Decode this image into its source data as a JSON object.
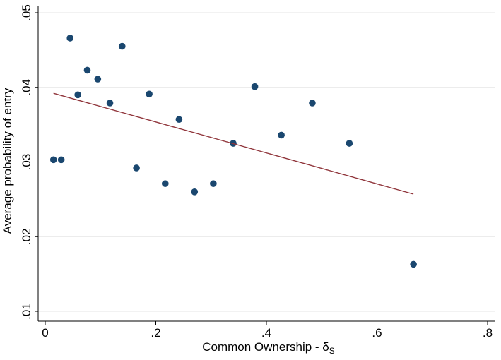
{
  "chart_data": {
    "type": "scatter",
    "title": "",
    "xlabel": "Common Ownership - δ",
    "xlabel_subscript": "S",
    "ylabel": "Average probability of entry",
    "xlim": [
      0,
      0.8
    ],
    "ylim": [
      0.01,
      0.05
    ],
    "x_ticks": [
      0,
      0.2,
      0.4,
      0.6,
      0.8
    ],
    "x_tick_labels": [
      "0",
      ".2",
      ".4",
      ".6",
      ".8"
    ],
    "y_ticks": [
      0.01,
      0.02,
      0.03,
      0.04,
      0.05
    ],
    "y_tick_labels": [
      ".01",
      ".02",
      ".03",
      ".04",
      ".05"
    ],
    "grid": "horizontal",
    "legend": "none",
    "series": [
      {
        "type": "scatter",
        "color": "#1a476f",
        "points": [
          [
            0.015,
            0.0303
          ],
          [
            0.029,
            0.0303
          ],
          [
            0.045,
            0.0466
          ],
          [
            0.059,
            0.039
          ],
          [
            0.076,
            0.0423
          ],
          [
            0.095,
            0.0411
          ],
          [
            0.117,
            0.0379
          ],
          [
            0.139,
            0.0455
          ],
          [
            0.165,
            0.0292
          ],
          [
            0.188,
            0.0391
          ],
          [
            0.217,
            0.0271
          ],
          [
            0.242,
            0.0357
          ],
          [
            0.27,
            0.026
          ],
          [
            0.304,
            0.0271
          ],
          [
            0.34,
            0.0325
          ],
          [
            0.379,
            0.0401
          ],
          [
            0.427,
            0.0336
          ],
          [
            0.483,
            0.0379
          ],
          [
            0.55,
            0.0325
          ],
          [
            0.666,
            0.0163
          ]
        ]
      },
      {
        "type": "line",
        "color": "#90353b",
        "points": [
          [
            0.015,
            0.0392
          ],
          [
            0.666,
            0.0257
          ]
        ]
      }
    ]
  }
}
